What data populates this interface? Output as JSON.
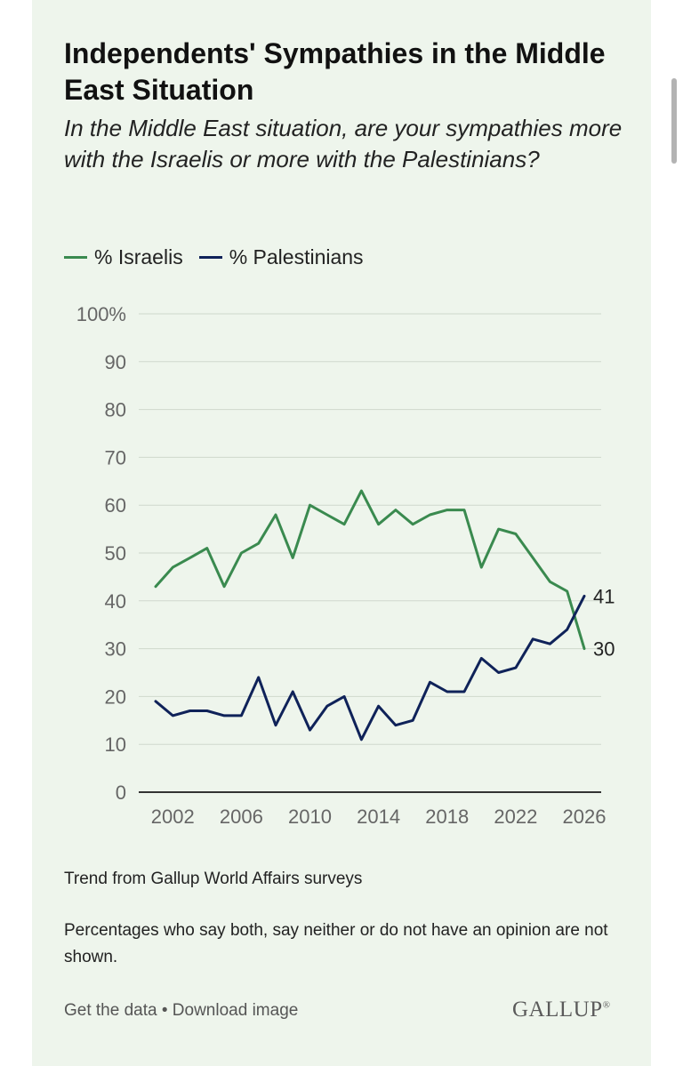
{
  "title": "Independents' Sympathies in the Middle East Situation",
  "subtitle": "In the Middle East situation, are your sympathies more with the Israelis or more with the Palestinians?",
  "legend": [
    {
      "label": "% Israelis",
      "color": "#3a8a4f"
    },
    {
      "label": "% Palestinians",
      "color": "#0f2259"
    }
  ],
  "chart_data": {
    "type": "line",
    "x": [
      2001,
      2002,
      2003,
      2004,
      2005,
      2006,
      2007,
      2008,
      2009,
      2010,
      2011,
      2012,
      2013,
      2014,
      2015,
      2016,
      2017,
      2018,
      2019,
      2020,
      2021,
      2022,
      2023,
      2024,
      2025,
      2026
    ],
    "series": [
      {
        "name": "% Israelis",
        "color": "#3a8a4f",
        "values": [
          43,
          47,
          49,
          51,
          43,
          50,
          52,
          58,
          49,
          60,
          58,
          56,
          63,
          56,
          59,
          56,
          58,
          59,
          59,
          47,
          55,
          54,
          49,
          44,
          42,
          30
        ]
      },
      {
        "name": "% Palestinians",
        "color": "#0f2259",
        "values": [
          19,
          16,
          17,
          17,
          16,
          16,
          24,
          14,
          21,
          13,
          18,
          20,
          11,
          18,
          14,
          15,
          23,
          21,
          21,
          28,
          25,
          26,
          32,
          31,
          34,
          41
        ]
      }
    ],
    "yticks": [
      "0",
      "10",
      "20",
      "30",
      "40",
      "50",
      "60",
      "70",
      "80",
      "90",
      "100%"
    ],
    "xticks": [
      "2002",
      "2006",
      "2010",
      "2014",
      "2018",
      "2022",
      "2026"
    ],
    "end_labels": [
      "30",
      "41"
    ],
    "ylim": [
      0,
      100
    ],
    "xlim": [
      2001,
      2026
    ],
    "grid": true
  },
  "footnotes": [
    "Trend from Gallup World Affairs surveys",
    "Percentages who say both, say neither or do not have an opinion are not shown."
  ],
  "links": {
    "get_data": "Get the data",
    "separator": " • ",
    "download": "Download image"
  },
  "logo": "GALLUP",
  "logo_mark": "®"
}
